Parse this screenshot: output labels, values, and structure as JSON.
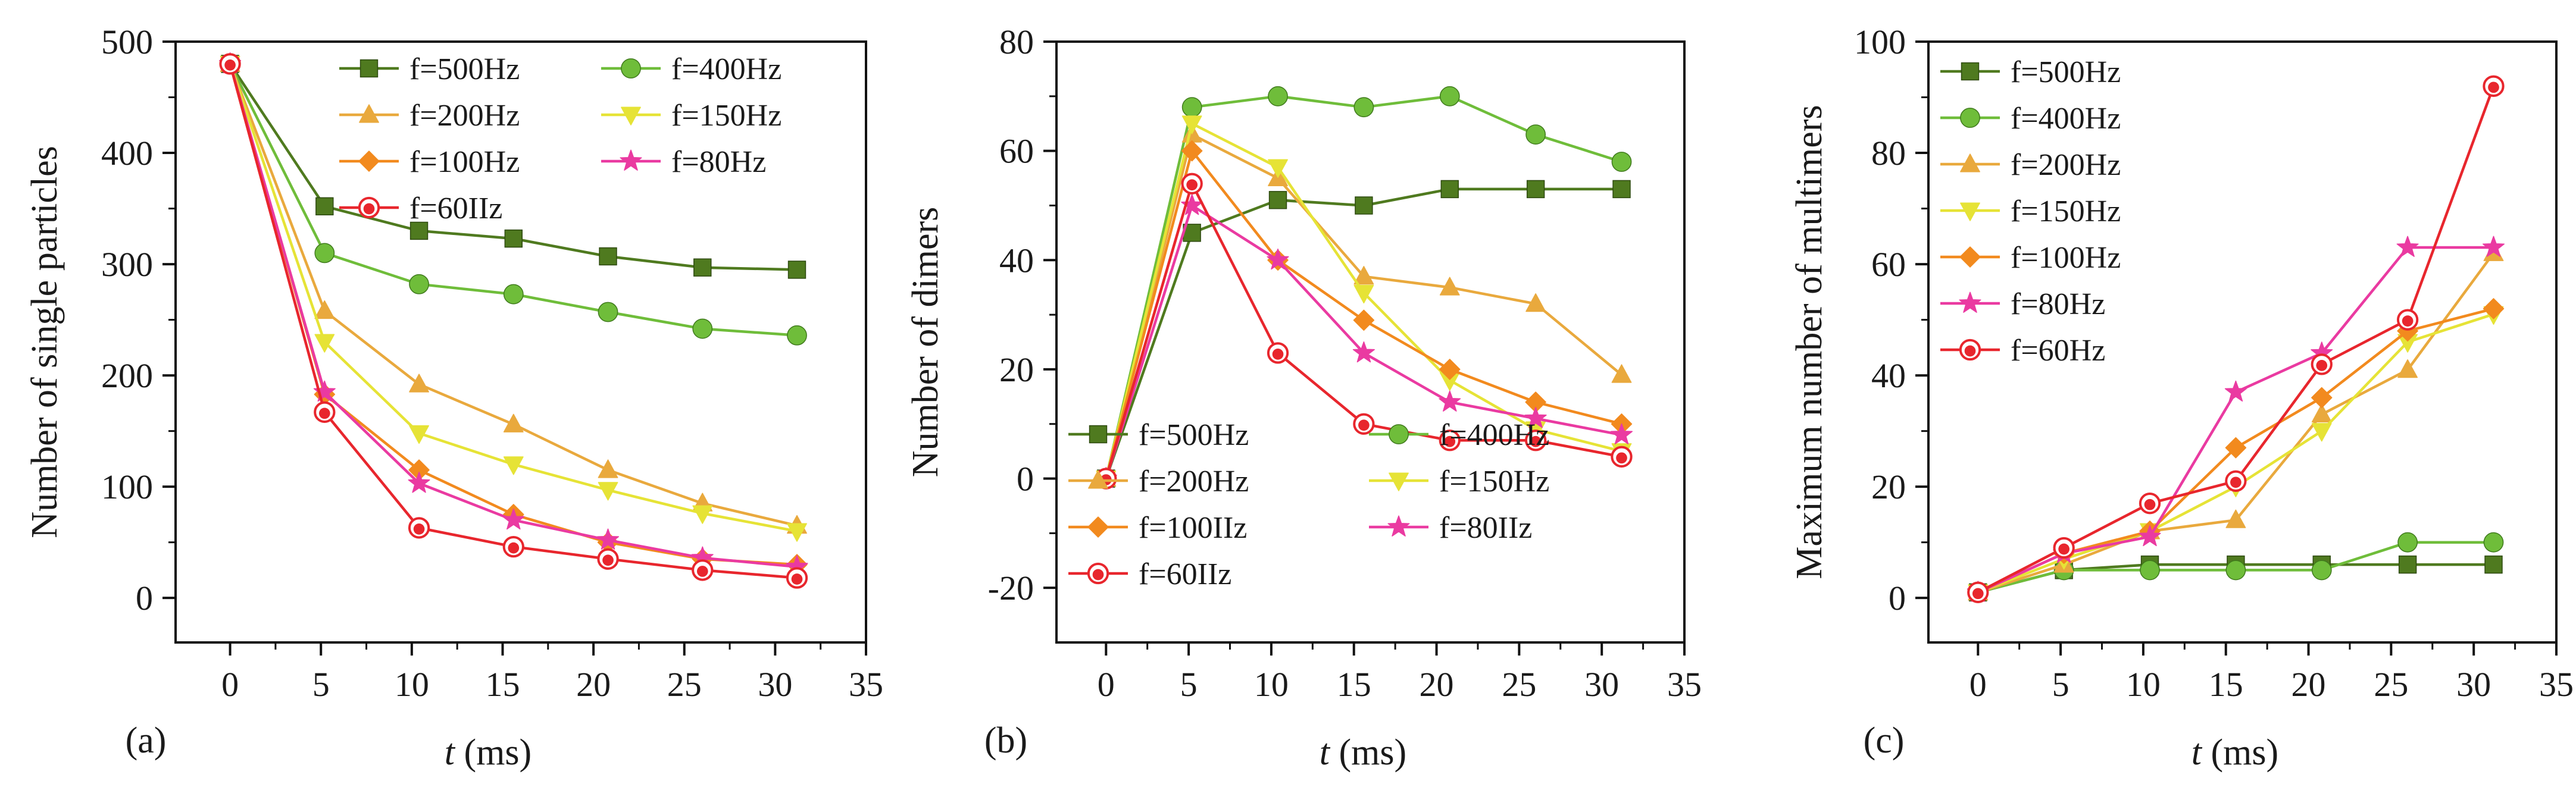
{
  "colors": {
    "f500": "#4f7a1f",
    "f400": "#6fbd3a",
    "f200": "#e9a93d",
    "f150": "#e6e336",
    "f100": "#f28a1e",
    "f80": "#ea3aa1",
    "f60": "#e8262d"
  },
  "chart_data": [
    {
      "type": "line",
      "panel_label": "(a)",
      "xlabel_italic": "t",
      "xlabel_rest": " (ms)",
      "ylabel": "Number of single particles",
      "xlim": [
        -3,
        35
      ],
      "ylim": [
        -40,
        500
      ],
      "xticks": [
        "0",
        "5",
        "10",
        "15",
        "20",
        "25",
        "30",
        "35"
      ],
      "yticks": [
        "0",
        "100",
        "200",
        "300",
        "400",
        "500"
      ],
      "x": [
        0,
        5.2,
        10.4,
        15.6,
        20.8,
        26,
        31.2
      ],
      "legend_layout": "two-column-top-right",
      "series": [
        {
          "name": "f=500Hz",
          "marker": "square",
          "color": "#4f7a1f",
          "values": [
            480,
            352,
            330,
            323,
            307,
            297,
            295
          ]
        },
        {
          "name": "f=400Hz",
          "marker": "circle",
          "color": "#6fbd3a",
          "values": [
            480,
            310,
            282,
            273,
            257,
            242,
            236
          ]
        },
        {
          "name": "f=200Hz",
          "marker": "triangle-up",
          "color": "#e9a93d",
          "values": [
            480,
            258,
            192,
            156,
            115,
            85,
            65
          ]
        },
        {
          "name": "f=150Hz",
          "marker": "triangle-down",
          "color": "#e6e336",
          "values": [
            480,
            230,
            148,
            120,
            97,
            76,
            60
          ]
        },
        {
          "name": "f=100Hz",
          "marker": "diamond",
          "color": "#f28a1e",
          "values": [
            480,
            183,
            115,
            75,
            50,
            35,
            30
          ]
        },
        {
          "name": "f=80Hz",
          "marker": "star",
          "color": "#ea3aa1",
          "values": [
            480,
            185,
            103,
            70,
            52,
            36,
            28
          ]
        },
        {
          "name": "f=60IIz",
          "marker": "circle-open",
          "color": "#e8262d",
          "values": [
            480,
            167,
            63,
            46,
            35,
            25,
            18
          ]
        }
      ]
    },
    {
      "type": "line",
      "panel_label": "(b)",
      "xlabel_italic": "t",
      "xlabel_rest": " (ms)",
      "ylabel": "Number of dimers",
      "xlim": [
        -3,
        35
      ],
      "ylim": [
        -30,
        80
      ],
      "xticks": [
        "0",
        "5",
        "10",
        "15",
        "20",
        "25",
        "30",
        "35"
      ],
      "yticks": [
        "-20",
        "0",
        "20",
        "40",
        "60",
        "80"
      ],
      "x": [
        0,
        5.2,
        10.4,
        15.6,
        20.8,
        26,
        31.2
      ],
      "legend_layout": "two-column-bottom-left",
      "series": [
        {
          "name": "f=500Hz",
          "marker": "square",
          "color": "#4f7a1f",
          "values": [
            0,
            45,
            51,
            50,
            53,
            53,
            53
          ]
        },
        {
          "name": "f=400Hz",
          "marker": "circle",
          "color": "#6fbd3a",
          "values": [
            0,
            68,
            70,
            68,
            70,
            63,
            58
          ]
        },
        {
          "name": "f=200Hz",
          "marker": "triangle-up",
          "color": "#e9a93d",
          "values": [
            0,
            63,
            55,
            37,
            35,
            32,
            19
          ]
        },
        {
          "name": "f=150Hz",
          "marker": "triangle-down",
          "color": "#e6e336",
          "values": [
            0,
            65,
            57,
            34,
            18,
            9,
            5
          ]
        },
        {
          "name": "f=100IIz",
          "marker": "diamond",
          "color": "#f28a1e",
          "values": [
            0,
            60,
            40,
            29,
            20,
            14,
            10
          ]
        },
        {
          "name": "f=80IIz",
          "marker": "star",
          "color": "#ea3aa1",
          "values": [
            0,
            50,
            40,
            23,
            14,
            11,
            8
          ]
        },
        {
          "name": "f=60IIz",
          "marker": "circle-open",
          "color": "#e8262d",
          "values": [
            0,
            54,
            23,
            10,
            7,
            7,
            4
          ]
        }
      ]
    },
    {
      "type": "line",
      "panel_label": "(c)",
      "xlabel_italic": "t",
      "xlabel_rest": " (ms)",
      "ylabel": "Maximum number of multimers",
      "xlim": [
        -3,
        35
      ],
      "ylim": [
        -8,
        100
      ],
      "xticks": [
        "0",
        "5",
        "10",
        "15",
        "20",
        "25",
        "30",
        "35"
      ],
      "yticks": [
        "0",
        "20",
        "40",
        "60",
        "80",
        "100"
      ],
      "x": [
        0,
        5.2,
        10.4,
        15.6,
        20.8,
        26,
        31.2
      ],
      "legend_layout": "one-column-top-left",
      "series": [
        {
          "name": "f=500Hz",
          "marker": "square",
          "color": "#4f7a1f",
          "values": [
            1,
            5,
            6,
            6,
            6,
            6,
            6
          ]
        },
        {
          "name": "f=400Hz",
          "marker": "circle",
          "color": "#6fbd3a",
          "values": [
            1,
            5,
            5,
            5,
            5,
            10,
            10
          ]
        },
        {
          "name": "f=200Hz",
          "marker": "triangle-up",
          "color": "#e9a93d",
          "values": [
            1,
            6,
            12,
            14,
            33,
            41,
            62
          ]
        },
        {
          "name": "f=150Hz",
          "marker": "triangle-down",
          "color": "#e6e336",
          "values": [
            1,
            7,
            12,
            20,
            30,
            46,
            51
          ]
        },
        {
          "name": "f=100Hz",
          "marker": "diamond",
          "color": "#f28a1e",
          "values": [
            1,
            8,
            12,
            27,
            36,
            48,
            52
          ]
        },
        {
          "name": "f=80Hz",
          "marker": "star",
          "color": "#ea3aa1",
          "values": [
            1,
            8,
            11,
            37,
            44,
            63,
            63
          ]
        },
        {
          "name": "f=60Hz",
          "marker": "circle-open",
          "color": "#e8262d",
          "values": [
            1,
            9,
            17,
            21,
            42,
            50,
            92
          ]
        }
      ]
    }
  ]
}
